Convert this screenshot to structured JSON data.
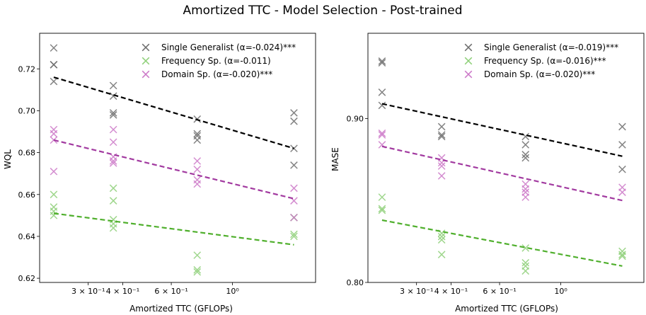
{
  "figure_title": "Amortized TTC - Model Selection - Post-trained",
  "colors": {
    "single_marker": "#6e6e6e",
    "single_line": "#000000",
    "frequency": "#8fd07a",
    "frequency_line": "#4faf2c",
    "domain": "#cc79c8",
    "domain_line": "#a23aa0"
  },
  "chart_data": [
    {
      "type": "scatter",
      "title": "",
      "xlabel": "Amortized TTC (GFLOPs)",
      "ylabel": "WQL",
      "xscale": "log",
      "xlim": [
        0.2,
        2.0
      ],
      "ylim": [
        0.618,
        0.737
      ],
      "x_ticks": [
        {
          "value": 0.3,
          "label": "3 × 10⁻¹"
        },
        {
          "value": 0.4,
          "label": "4 × 10⁻¹"
        },
        {
          "value": 0.6,
          "label": "6 × 10⁻¹"
        },
        {
          "value": 1.0,
          "label": "10⁰"
        }
      ],
      "y_ticks": [
        {
          "value": 0.62,
          "label": "0.62"
        },
        {
          "value": 0.64,
          "label": "0.64"
        },
        {
          "value": 0.66,
          "label": "0.66"
        },
        {
          "value": 0.68,
          "label": "0.68"
        },
        {
          "value": 0.7,
          "label": "0.70"
        },
        {
          "value": 0.72,
          "label": "0.72"
        }
      ],
      "series": [
        {
          "name": "Single Generalist (α=-0.024)***",
          "key": "single",
          "points": [
            [
              0.225,
              0.73
            ],
            [
              0.225,
              0.722
            ],
            [
              0.225,
              0.722
            ],
            [
              0.225,
              0.714
            ],
            [
              0.37,
              0.712
            ],
            [
              0.37,
              0.707
            ],
            [
              0.37,
              0.699
            ],
            [
              0.37,
              0.698
            ],
            [
              0.745,
              0.696
            ],
            [
              0.745,
              0.689
            ],
            [
              0.745,
              0.688
            ],
            [
              0.745,
              0.686
            ],
            [
              1.67,
              0.699
            ],
            [
              1.67,
              0.695
            ],
            [
              1.67,
              0.682
            ],
            [
              1.67,
              0.674
            ],
            [
              1.67,
              0.649
            ]
          ],
          "fit": [
            [
              0.225,
              0.716
            ],
            [
              1.67,
              0.682
            ]
          ]
        },
        {
          "name": "Frequency Sp. (α=-0.011)",
          "key": "frequency",
          "points": [
            [
              0.225,
              0.66
            ],
            [
              0.225,
              0.654
            ],
            [
              0.225,
              0.652
            ],
            [
              0.225,
              0.65
            ],
            [
              0.37,
              0.663
            ],
            [
              0.37,
              0.657
            ],
            [
              0.37,
              0.648
            ],
            [
              0.37,
              0.646
            ],
            [
              0.37,
              0.644
            ],
            [
              0.745,
              0.631
            ],
            [
              0.745,
              0.624
            ],
            [
              0.745,
              0.623
            ],
            [
              1.67,
              0.649
            ],
            [
              1.67,
              0.641
            ],
            [
              1.67,
              0.64
            ]
          ],
          "fit": [
            [
              0.225,
              0.651
            ],
            [
              1.67,
              0.636
            ]
          ]
        },
        {
          "name": "Domain Sp. (α=-0.020)***",
          "key": "domain",
          "points": [
            [
              0.225,
              0.691
            ],
            [
              0.225,
              0.689
            ],
            [
              0.225,
              0.686
            ],
            [
              0.225,
              0.671
            ],
            [
              0.37,
              0.691
            ],
            [
              0.37,
              0.685
            ],
            [
              0.37,
              0.678
            ],
            [
              0.37,
              0.676
            ],
            [
              0.37,
              0.675
            ],
            [
              0.745,
              0.676
            ],
            [
              0.745,
              0.672
            ],
            [
              0.745,
              0.667
            ],
            [
              0.745,
              0.665
            ],
            [
              1.67,
              0.663
            ],
            [
              1.67,
              0.657
            ],
            [
              1.67,
              0.649
            ]
          ],
          "fit": [
            [
              0.225,
              0.686
            ],
            [
              1.67,
              0.658
            ]
          ]
        }
      ]
    },
    {
      "type": "scatter",
      "title": "",
      "xlabel": "Amortized TTC (GFLOPs)",
      "ylabel": "MASE",
      "xscale": "log",
      "xlim": [
        0.2,
        2.0
      ],
      "ylim": [
        0.8,
        0.952
      ],
      "x_ticks": [
        {
          "value": 0.3,
          "label": "3 × 10⁻¹"
        },
        {
          "value": 0.4,
          "label": "4 × 10⁻¹"
        },
        {
          "value": 0.6,
          "label": "6 × 10⁻¹"
        },
        {
          "value": 1.0,
          "label": "10⁰"
        }
      ],
      "y_ticks": [
        {
          "value": 0.8,
          "label": "0.80"
        },
        {
          "value": 0.9,
          "label": "0.90"
        }
      ],
      "series": [
        {
          "name": "Single Generalist (α=-0.019)***",
          "key": "single",
          "points": [
            [
              0.225,
              0.935
            ],
            [
              0.225,
              0.934
            ],
            [
              0.225,
              0.916
            ],
            [
              0.225,
              0.908
            ],
            [
              0.37,
              0.895
            ],
            [
              0.37,
              0.89
            ],
            [
              0.37,
              0.889
            ],
            [
              0.745,
              0.889
            ],
            [
              0.745,
              0.884
            ],
            [
              0.745,
              0.878
            ],
            [
              0.745,
              0.876
            ],
            [
              1.67,
              0.895
            ],
            [
              1.67,
              0.884
            ],
            [
              1.67,
              0.869
            ]
          ],
          "fit": [
            [
              0.225,
              0.909
            ],
            [
              1.67,
              0.877
            ]
          ]
        },
        {
          "name": "Frequency Sp. (α=-0.016)***",
          "key": "frequency",
          "points": [
            [
              0.225,
              0.852
            ],
            [
              0.225,
              0.845
            ],
            [
              0.225,
              0.844
            ],
            [
              0.37,
              0.83
            ],
            [
              0.37,
              0.828
            ],
            [
              0.37,
              0.826
            ],
            [
              0.37,
              0.817
            ],
            [
              0.745,
              0.821
            ],
            [
              0.745,
              0.812
            ],
            [
              0.745,
              0.81
            ],
            [
              0.745,
              0.807
            ],
            [
              1.67,
              0.819
            ],
            [
              1.67,
              0.817
            ],
            [
              1.67,
              0.816
            ]
          ],
          "fit": [
            [
              0.225,
              0.838
            ],
            [
              1.67,
              0.81
            ]
          ]
        },
        {
          "name": "Domain Sp. (α=-0.020)***",
          "key": "domain",
          "points": [
            [
              0.225,
              0.891
            ],
            [
              0.225,
              0.89
            ],
            [
              0.225,
              0.884
            ],
            [
              0.37,
              0.876
            ],
            [
              0.37,
              0.873
            ],
            [
              0.37,
              0.871
            ],
            [
              0.37,
              0.865
            ],
            [
              0.745,
              0.86
            ],
            [
              0.745,
              0.857
            ],
            [
              0.745,
              0.855
            ],
            [
              0.745,
              0.852
            ],
            [
              1.67,
              0.858
            ],
            [
              1.67,
              0.855
            ]
          ],
          "fit": [
            [
              0.225,
              0.883
            ],
            [
              1.67,
              0.85
            ]
          ]
        }
      ]
    }
  ]
}
